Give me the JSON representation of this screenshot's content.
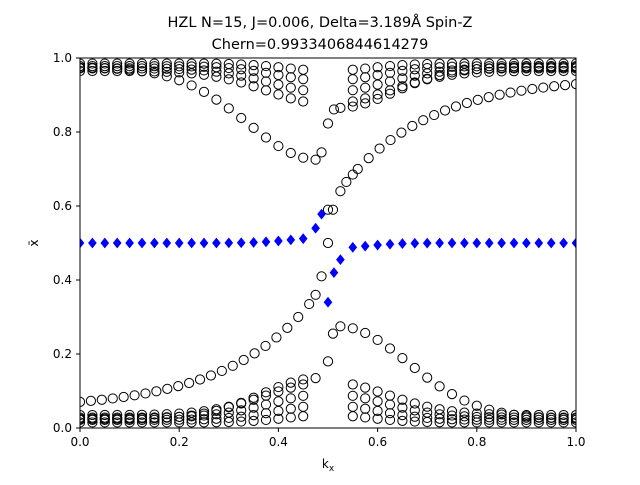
{
  "chart_data": {
    "type": "scatter",
    "title_line1": "HZL N=15, J=0.006, Delta=3.189Å Spin-Z",
    "title_line2": "Chern=0.9933406844614279",
    "xlabel": "k_x",
    "ylabel": "x̄",
    "xlim": [
      0.0,
      1.0
    ],
    "ylim": [
      0.0,
      1.0
    ],
    "xticks": [
      "0.0",
      "0.2",
      "0.4",
      "0.6",
      "0.8",
      "1.0"
    ],
    "yticks": [
      "0.0",
      "0.2",
      "0.4",
      "0.6",
      "0.8",
      "1.0"
    ],
    "grid": false,
    "legend": "none",
    "colors": {
      "bands": "#000000",
      "edge_state": "#0000ff"
    },
    "series": [
      {
        "marker": "open-circle",
        "color": "#000000",
        "x": [
          0.487,
          0.5,
          0.5,
          0.5,
          0.5,
          0.51,
          0.51,
          0.512,
          0.525,
          0.537,
          0.55,
          0.487,
          0.475,
          0.462
        ],
        "y": [
          0.745,
          0.823,
          0.5,
          0.18,
          0.59,
          0.59,
          0.255,
          0.861,
          0.64,
          0.665,
          0.685,
          0.41,
          0.36,
          0.335
        ]
      },
      {
        "marker": "diamond",
        "color": "#0000ff",
        "x": [
          0.487,
          0.475,
          0.5,
          0.512,
          0.525
        ],
        "y": [
          0.578,
          0.54,
          0.34,
          0.42,
          0.455
        ]
      }
    ],
    "bands": [
      {
        "upper_dip": true,
        "y0": 0.97,
        "ymid": 0.955
      },
      {
        "y0": 0.965,
        "ymid": 0.935
      },
      {
        "y0": 0.958,
        "ymid": 0.915
      },
      {
        "y0": 0.95,
        "ymid": 0.89
      },
      {
        "y0": 0.94,
        "ymid": 0.875
      },
      {
        "y0": 0.93,
        "ymid": 0.725
      }
    ]
  }
}
